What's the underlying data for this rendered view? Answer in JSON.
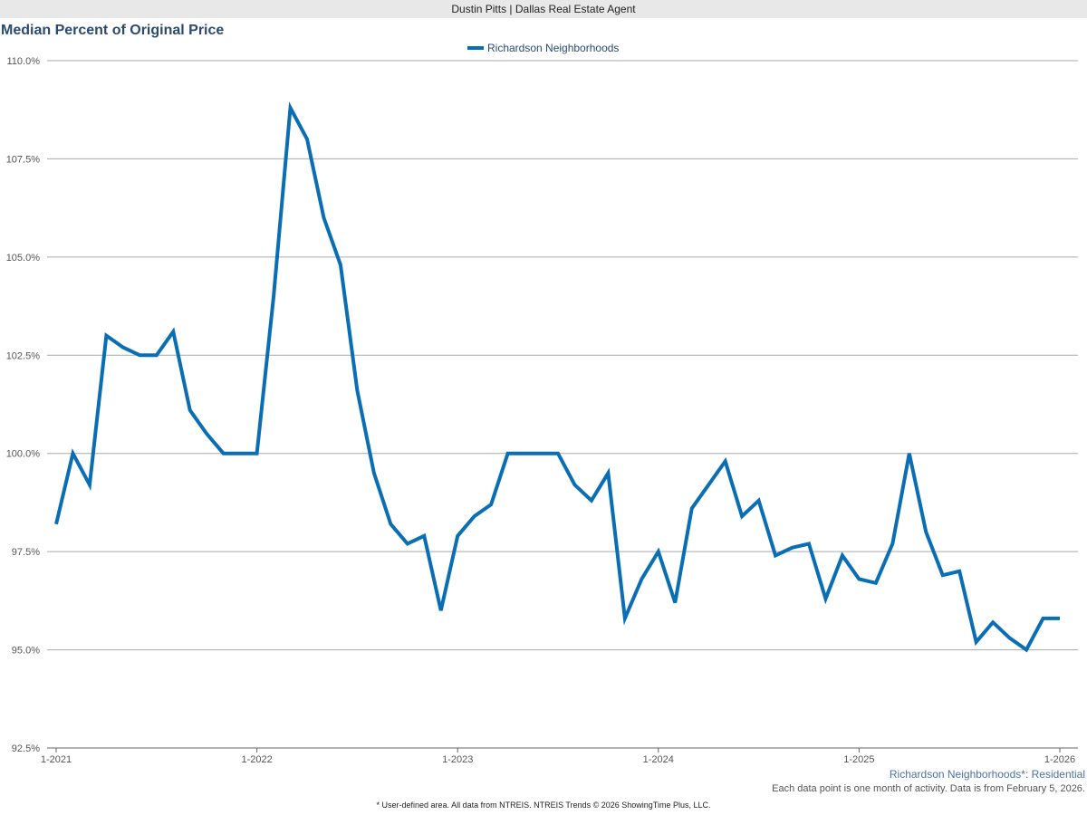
{
  "header": {
    "title": "Dustin Pitts | Dallas Real Estate Agent"
  },
  "chart_data": {
    "type": "line",
    "title": "Median Percent of Original Price",
    "xlabel": "",
    "ylabel": "",
    "ylim": [
      92.5,
      110
    ],
    "yticks": [
      "92.5%",
      "95.0%",
      "97.5%",
      "100.0%",
      "102.5%",
      "105.0%",
      "107.5%",
      "110.0%"
    ],
    "xticks": [
      "1-2021",
      "1-2022",
      "1-2023",
      "1-2024",
      "1-2025",
      "1-2026"
    ],
    "x_range": [
      "1-2021",
      "1-2026"
    ],
    "grid": "horizontal",
    "legend": "top-center",
    "colors": {
      "series": "#0a6eb4",
      "grid": "#aaaaaa"
    },
    "series": [
      {
        "name": "Richardson Neighborhoods",
        "values": [
          98.2,
          100.0,
          99.2,
          103.0,
          102.7,
          102.5,
          102.5,
          103.1,
          101.1,
          100.5,
          100.0,
          100.0,
          100.0,
          104.0,
          108.8,
          108.0,
          106.0,
          104.8,
          101.6,
          99.5,
          98.2,
          97.7,
          97.9,
          96.0,
          97.9,
          98.4,
          98.7,
          100.0,
          100.0,
          100.0,
          100.0,
          99.2,
          98.8,
          99.5,
          95.8,
          96.8,
          97.5,
          96.2,
          98.6,
          99.2,
          99.8,
          98.4,
          98.8,
          97.4,
          97.6,
          97.7,
          96.3,
          97.4,
          96.8,
          96.7,
          97.7,
          100.0,
          98.0,
          96.9,
          97.0,
          95.2,
          95.7,
          95.3,
          95.0,
          95.8,
          95.8
        ]
      }
    ]
  },
  "footer": {
    "area": "Richardson Neighborhoods*: Residential",
    "note": "Each data point is one month of activity. Data is from February 5, 2026.",
    "credit": "* User-defined area. All data from NTREIS. NTREIS Trends © 2026 ShowingTime Plus, LLC."
  }
}
